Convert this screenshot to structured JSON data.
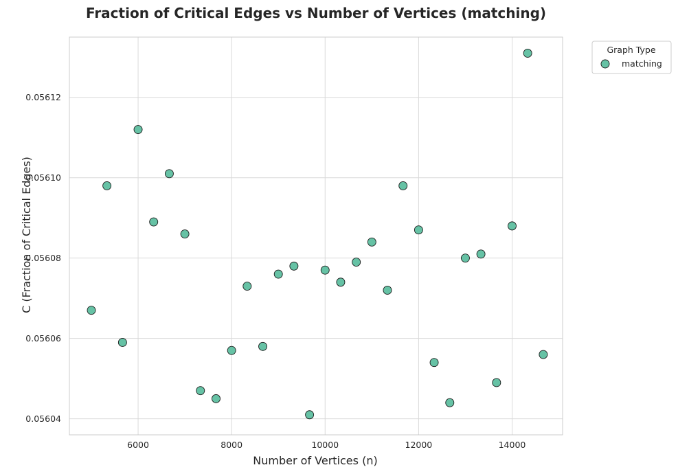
{
  "chart_data": {
    "type": "scatter",
    "title": "Fraction of Critical Edges vs Number of Vertices (matching)",
    "xlabel": "Number of Vertices (n)",
    "ylabel": "C (Fraction of Critical Edges)",
    "xlim": [
      4530,
      15080
    ],
    "ylim": [
      0.056036,
      0.056135
    ],
    "xticks": [
      6000,
      8000,
      10000,
      12000,
      14000
    ],
    "xtick_labels": [
      "6000",
      "8000",
      "10000",
      "12000",
      "14000"
    ],
    "yticks": [
      0.05604,
      0.05606,
      0.05608,
      0.0561,
      0.05612
    ],
    "ytick_labels": [
      "0.05604",
      "0.05606",
      "0.05608",
      "0.05610",
      "0.05612"
    ],
    "grid": true,
    "legend": {
      "title": "Graph Type",
      "placement": "outside-top-right",
      "entries": [
        "matching"
      ]
    },
    "series": [
      {
        "name": "matching",
        "color": "#66c2a5",
        "points": [
          {
            "x": 5000,
            "y": 0.056067
          },
          {
            "x": 5333,
            "y": 0.056098
          },
          {
            "x": 5667,
            "y": 0.056059
          },
          {
            "x": 6000,
            "y": 0.056112
          },
          {
            "x": 6333,
            "y": 0.056089
          },
          {
            "x": 6667,
            "y": 0.056101
          },
          {
            "x": 7000,
            "y": 0.056086
          },
          {
            "x": 7333,
            "y": 0.056047
          },
          {
            "x": 7667,
            "y": 0.056045
          },
          {
            "x": 8000,
            "y": 0.056057
          },
          {
            "x": 8333,
            "y": 0.056073
          },
          {
            "x": 8667,
            "y": 0.056058
          },
          {
            "x": 9000,
            "y": 0.056076
          },
          {
            "x": 9333,
            "y": 0.056078
          },
          {
            "x": 9667,
            "y": 0.056041
          },
          {
            "x": 10000,
            "y": 0.056077
          },
          {
            "x": 10333,
            "y": 0.056074
          },
          {
            "x": 10667,
            "y": 0.056079
          },
          {
            "x": 11000,
            "y": 0.056084
          },
          {
            "x": 11333,
            "y": 0.056072
          },
          {
            "x": 11667,
            "y": 0.056098
          },
          {
            "x": 12000,
            "y": 0.056087
          },
          {
            "x": 12333,
            "y": 0.056054
          },
          {
            "x": 12667,
            "y": 0.056044
          },
          {
            "x": 13000,
            "y": 0.05608
          },
          {
            "x": 13333,
            "y": 0.056081
          },
          {
            "x": 13667,
            "y": 0.056049
          },
          {
            "x": 14000,
            "y": 0.056088
          },
          {
            "x": 14333,
            "y": 0.056131
          },
          {
            "x": 14667,
            "y": 0.056056
          }
        ]
      }
    ]
  }
}
